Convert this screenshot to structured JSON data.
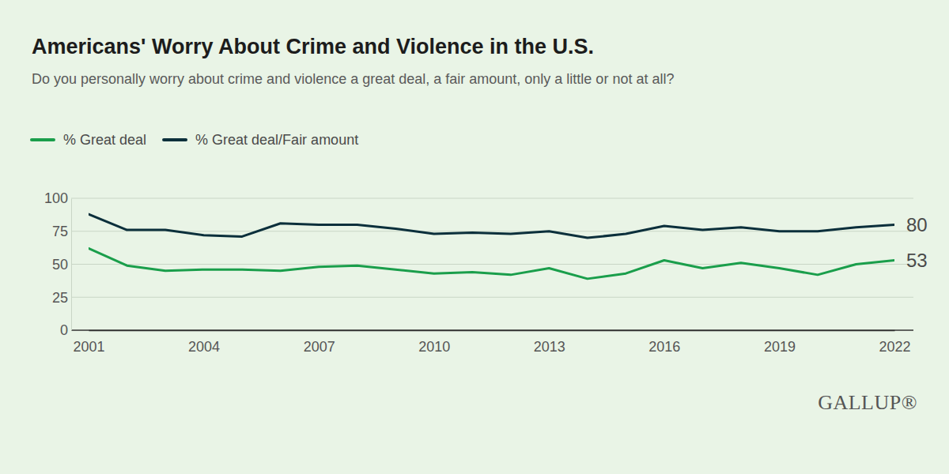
{
  "chart_data": {
    "type": "line",
    "title": "Americans' Worry About Crime and Violence in the U.S.",
    "subtitle": "Do you personally worry about crime and violence a great deal, a fair amount, only a little or not at all?",
    "source": "GALLUP®",
    "x": [
      2001,
      2002,
      2003,
      2004,
      2005,
      2006,
      2007,
      2008,
      2009,
      2010,
      2011,
      2012,
      2013,
      2014,
      2015,
      2016,
      2017,
      2018,
      2019,
      2020,
      2021,
      2022
    ],
    "series": [
      {
        "name": "% Great deal",
        "color": "#1a9e4b",
        "values": [
          62,
          49,
          45,
          46,
          46,
          45,
          48,
          49,
          46,
          43,
          44,
          42,
          47,
          39,
          43,
          53,
          47,
          51,
          47,
          42,
          50,
          53
        ],
        "value_labels": [
          null,
          null,
          null,
          null,
          null,
          null,
          null,
          null,
          null,
          null,
          null,
          null,
          null,
          null,
          null,
          null,
          null,
          null,
          null,
          null,
          null,
          "53"
        ]
      },
      {
        "name": "% Great deal/Fair amount",
        "color": "#0b2f3b",
        "values": [
          88,
          76,
          76,
          72,
          71,
          81,
          80,
          80,
          77,
          73,
          74,
          73,
          75,
          70,
          73,
          79,
          76,
          78,
          75,
          75,
          78,
          80
        ],
        "value_labels": [
          null,
          null,
          null,
          null,
          null,
          null,
          null,
          null,
          null,
          null,
          null,
          null,
          null,
          null,
          null,
          null,
          null,
          null,
          null,
          null,
          null,
          "80"
        ]
      }
    ],
    "xlim": [
      2001,
      2022
    ],
    "xticks": [
      2001,
      2004,
      2007,
      2010,
      2013,
      2016,
      2019,
      2022
    ],
    "ylim": [
      0,
      100
    ],
    "yticks": [
      0,
      25,
      50,
      75,
      100
    ],
    "grid": true,
    "legend": "top-left"
  }
}
